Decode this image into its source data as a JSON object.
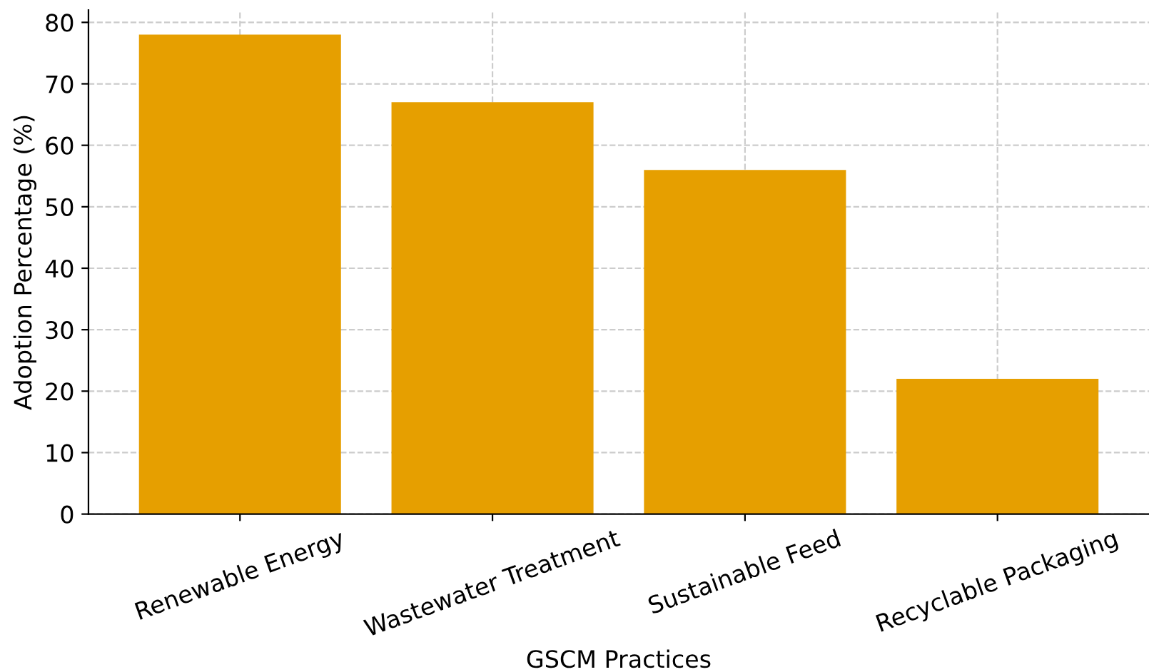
{
  "chart_data": {
    "type": "bar",
    "xlabel": "GSCM Practices",
    "ylabel": "Adoption Percentage (%)",
    "categories": [
      "Renewable Energy",
      "Wastewater Treatment",
      "Sustainable Feed",
      "Recyclable Packaging"
    ],
    "values": [
      78,
      67,
      56,
      22
    ],
    "color": "#e69f00",
    "ylim": [
      0,
      82
    ],
    "yticks": [
      0,
      10,
      20,
      30,
      40,
      50,
      60,
      70,
      80
    ],
    "grid": true
  }
}
